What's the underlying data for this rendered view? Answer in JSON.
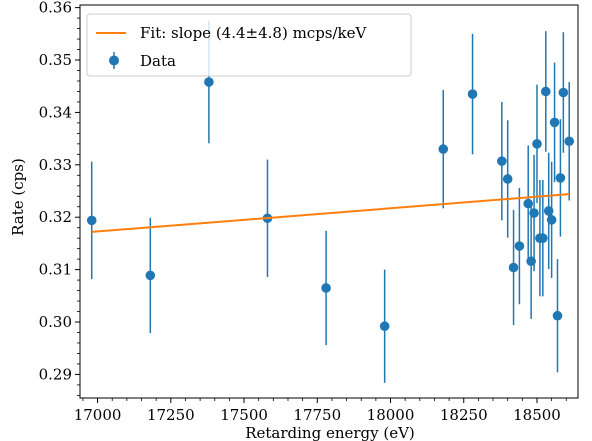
{
  "colors": {
    "data": "#1f77b4",
    "fit": "#ff7f0e",
    "axis": "#000000",
    "background": "#ffffff"
  },
  "chart_data": {
    "type": "scatter",
    "xlabel": "Retarding energy (eV)",
    "ylabel": "Rate (cps)",
    "xlim": [
      16940,
      18640
    ],
    "ylim": [
      0.2855,
      0.3605
    ],
    "xticks": [
      17000,
      17250,
      17500,
      17750,
      18000,
      18250,
      18500
    ],
    "xtick_labels": [
      "17000",
      "17250",
      "17500",
      "17750",
      "18000",
      "18250",
      "18500"
    ],
    "yticks": [
      0.29,
      0.3,
      0.31,
      0.32,
      0.33,
      0.34,
      0.35,
      0.36
    ],
    "ytick_labels": [
      "0.29",
      "0.30",
      "0.31",
      "0.32",
      "0.33",
      "0.34",
      "0.35",
      "0.36"
    ],
    "legend_position": "top-left",
    "grid": false,
    "series": [
      {
        "name": "Fit: slope (4.4±4.8) mcps/keV",
        "kind": "line",
        "x": [
          16980,
          18610
        ],
        "y": [
          0.3172,
          0.3244
        ]
      },
      {
        "name": "Data",
        "kind": "errorbar",
        "x": [
          16980,
          17180,
          17380,
          17580,
          17780,
          17980,
          18180,
          18280,
          18380,
          18400,
          18420,
          18440,
          18470,
          18480,
          18490,
          18500,
          18510,
          18520,
          18530,
          18540,
          18550,
          18560,
          18570,
          18580,
          18590,
          18610
        ],
        "y": [
          0.3194,
          0.3089,
          0.3458,
          0.3198,
          0.3065,
          0.2992,
          0.333,
          0.3435,
          0.3307,
          0.3273,
          0.3104,
          0.3145,
          0.3226,
          0.3116,
          0.3208,
          0.334,
          0.316,
          0.316,
          0.344,
          0.3212,
          0.3195,
          0.3381,
          0.3012,
          0.3275,
          0.3438,
          0.3345
        ],
        "yerr": [
          0.0112,
          0.011,
          0.0117,
          0.0112,
          0.0109,
          0.0108,
          0.0113,
          0.0115,
          0.0113,
          0.0112,
          0.011,
          0.0111,
          0.0111,
          0.011,
          0.0111,
          0.0113,
          0.0111,
          0.0111,
          0.0115,
          0.0111,
          0.0111,
          0.0114,
          0.0108,
          0.0112,
          0.0115,
          0.0113
        ]
      }
    ]
  }
}
